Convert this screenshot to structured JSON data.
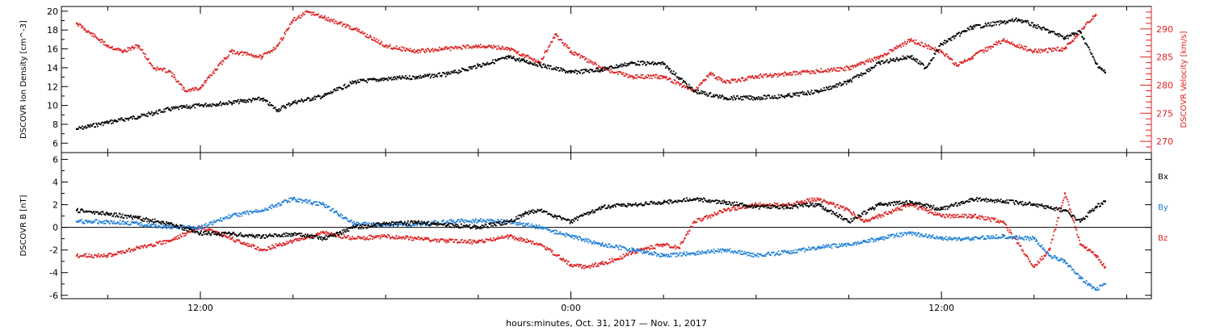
{
  "xlabel": "hours:minutes, Oct. 31, 2017 — Nov. 1, 2017",
  "x_ticks": [
    "12:00",
    "0:00",
    "12:00"
  ],
  "colors": {
    "black": "#000000",
    "red": "#dd2222",
    "blue": "#1f7fd6"
  },
  "chart_data": [
    {
      "type": "scatter",
      "panel": "top",
      "ylabel_left": "DSCOVR Ion Density [cm^-3]",
      "ylabel_right": "DSCOVR Velocity [km/s]",
      "x_unit": "hours since Oct. 31 00:00",
      "xlim": [
        7.5,
        42.8
      ],
      "ylim_left": [
        5,
        20.5
      ],
      "ylim_right": [
        268,
        294
      ],
      "left_ticks": [
        "6",
        "8",
        "10",
        "12",
        "14",
        "16",
        "18",
        "20"
      ],
      "right_ticks": [
        "270",
        "275",
        "280",
        "285",
        "290"
      ],
      "grid": false,
      "series": [
        {
          "name": "Ion Density",
          "axis": "left",
          "color": "black",
          "x": [
            8.0,
            9.0,
            10.0,
            11.0,
            12.0,
            13.0,
            14.0,
            14.5,
            15.0,
            16.0,
            17.0,
            18.0,
            19.0,
            20.0,
            21.0,
            22.0,
            22.5,
            23.0,
            24.0,
            25.0,
            26.0,
            27.0,
            28.0,
            29.0,
            30.0,
            31.0,
            32.0,
            33.0,
            34.0,
            35.0,
            35.5,
            36.0,
            37.0,
            38.0,
            38.5,
            39.0,
            40.0,
            40.5,
            41.0,
            41.3
          ],
          "y": [
            7.5,
            8.2,
            8.8,
            9.6,
            10.0,
            10.3,
            10.7,
            9.5,
            10.3,
            11.0,
            12.5,
            12.8,
            13.0,
            13.3,
            14.2,
            15.1,
            14.7,
            14.3,
            13.5,
            13.8,
            14.5,
            14.4,
            11.5,
            10.8,
            10.8,
            11.0,
            11.5,
            12.5,
            14.5,
            15.2,
            14.0,
            16.5,
            18.3,
            18.8,
            19.1,
            18.5,
            17.2,
            17.8,
            14.5,
            13.5
          ]
        },
        {
          "name": "Velocity",
          "axis": "right",
          "color": "red",
          "x": [
            8.0,
            9.0,
            9.5,
            10.0,
            10.5,
            11.0,
            11.5,
            12.0,
            13.0,
            14.0,
            14.5,
            15.0,
            15.5,
            16.0,
            17.0,
            18.0,
            19.0,
            20.0,
            21.0,
            22.0,
            23.0,
            23.5,
            24.0,
            25.0,
            26.0,
            27.0,
            28.0,
            28.5,
            29.0,
            30.0,
            31.0,
            32.0,
            33.0,
            34.0,
            35.0,
            36.0,
            36.5,
            37.0,
            38.0,
            39.0,
            40.0,
            41.0
          ],
          "y": [
            291.0,
            287.0,
            286.0,
            287.0,
            283.0,
            282.5,
            279.0,
            279.5,
            286.0,
            285.0,
            287.0,
            291.5,
            293.0,
            292.0,
            290.0,
            287.0,
            286.0,
            286.5,
            287.0,
            286.5,
            284.0,
            289.0,
            286.0,
            283.0,
            281.5,
            281.5,
            279.0,
            282.0,
            280.5,
            281.5,
            282.0,
            282.5,
            283.0,
            285.0,
            288.0,
            286.0,
            283.5,
            285.0,
            288.0,
            286.0,
            286.5,
            292.5
          ]
        }
      ]
    },
    {
      "type": "scatter",
      "panel": "bottom",
      "ylabel_left": "DSCOVR B [nT]",
      "x_unit": "hours since Oct. 31 00:00",
      "xlim": [
        7.5,
        42.8
      ],
      "ylim": [
        -6.3,
        6.6
      ],
      "left_ticks": [
        "-6",
        "-4",
        "-2",
        "0",
        "2",
        "4",
        "6"
      ],
      "zero_line": true,
      "grid": false,
      "series": [
        {
          "name": "Bx",
          "color": "black",
          "x": [
            8.0,
            9.0,
            10.0,
            11.0,
            12.0,
            13.0,
            14.0,
            15.0,
            16.0,
            17.0,
            18.0,
            19.0,
            20.0,
            21.0,
            22.0,
            22.5,
            23.0,
            23.5,
            24.0,
            25.0,
            26.0,
            27.0,
            28.0,
            29.0,
            30.0,
            31.0,
            32.0,
            33.0,
            34.0,
            35.0,
            36.0,
            37.0,
            38.0,
            39.0,
            40.0,
            40.5,
            41.0,
            41.3
          ],
          "y": [
            1.5,
            1.2,
            0.8,
            0.3,
            -0.5,
            -0.6,
            -0.8,
            -0.6,
            -1.0,
            0.0,
            0.3,
            0.4,
            0.2,
            0.0,
            0.5,
            1.2,
            1.5,
            1.0,
            0.5,
            1.8,
            2.0,
            2.2,
            2.5,
            2.2,
            1.8,
            1.8,
            2.0,
            0.5,
            2.0,
            2.2,
            1.6,
            2.5,
            2.3,
            2.0,
            1.5,
            0.5,
            1.8,
            2.3
          ]
        },
        {
          "name": "By",
          "color": "blue",
          "x": [
            8.0,
            9.0,
            10.0,
            11.0,
            12.0,
            13.0,
            14.0,
            15.0,
            16.0,
            17.0,
            18.0,
            19.0,
            20.0,
            21.0,
            22.0,
            23.0,
            24.0,
            25.0,
            26.0,
            27.0,
            28.0,
            29.0,
            30.0,
            31.0,
            32.0,
            33.0,
            34.0,
            35.0,
            36.0,
            37.0,
            38.0,
            39.0,
            39.5,
            40.0,
            40.5,
            41.0,
            41.3
          ],
          "y": [
            0.5,
            0.5,
            0.3,
            0.0,
            0.0,
            1.0,
            1.5,
            2.5,
            2.0,
            0.3,
            0.2,
            0.3,
            0.5,
            0.6,
            0.5,
            0.0,
            -0.8,
            -1.5,
            -2.0,
            -2.5,
            -2.3,
            -2.0,
            -2.5,
            -2.2,
            -1.8,
            -1.5,
            -1.0,
            -0.5,
            -1.0,
            -1.0,
            -0.8,
            -1.0,
            -2.5,
            -3.0,
            -4.5,
            -5.5,
            -5.0
          ]
        },
        {
          "name": "Bz",
          "color": "red",
          "x": [
            8.0,
            9.0,
            10.0,
            11.0,
            12.0,
            12.5,
            13.0,
            14.0,
            15.0,
            16.0,
            17.0,
            18.0,
            19.0,
            20.0,
            21.0,
            22.0,
            23.0,
            24.0,
            24.5,
            25.0,
            25.5,
            26.0,
            27.0,
            27.5,
            28.0,
            29.0,
            30.0,
            31.0,
            32.0,
            33.0,
            33.5,
            34.0,
            35.0,
            36.0,
            37.0,
            38.0,
            39.0,
            39.5,
            40.0,
            40.5,
            41.0,
            41.3
          ],
          "y": [
            -2.5,
            -2.5,
            -1.8,
            -1.2,
            0.0,
            -0.5,
            -1.0,
            -2.0,
            -1.2,
            -0.5,
            -1.0,
            -0.8,
            -1.0,
            -1.2,
            -1.3,
            -0.8,
            -1.5,
            -3.3,
            -3.5,
            -3.2,
            -2.8,
            -2.2,
            -1.5,
            -1.8,
            0.5,
            1.5,
            2.0,
            2.0,
            2.5,
            1.5,
            0.5,
            1.0,
            2.0,
            1.0,
            1.0,
            0.5,
            -3.5,
            -2.0,
            3.0,
            -1.5,
            -2.5,
            -3.5
          ]
        }
      ],
      "legend": [
        "Bx",
        "By",
        "Bz"
      ],
      "legend_placement": "right"
    }
  ]
}
